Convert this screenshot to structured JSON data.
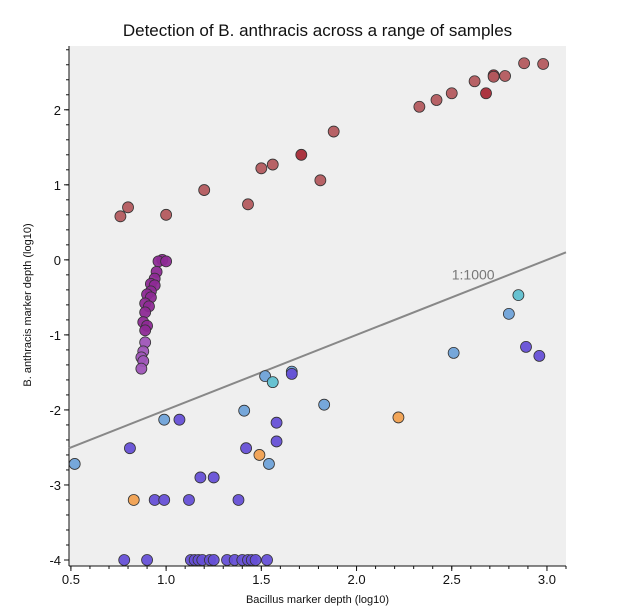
{
  "chart_data": {
    "type": "scatter",
    "title": "Detection of B. anthracis across a range of samples",
    "xlabel": "Bacillus marker depth (log10)",
    "ylabel": "B. anthracis marker depth (log10)",
    "xlim": [
      0.49,
      3.1
    ],
    "ylim": [
      -4.08,
      2.85
    ],
    "x_ticks": [
      "0.5",
      "1.0",
      "1.5",
      "2.0",
      "2.5",
      "3.0"
    ],
    "y_ticks": [
      "-4",
      "-3",
      "-2",
      "-1",
      "0",
      "1",
      "2"
    ],
    "grid": false,
    "background": "#efefef",
    "reference_line": {
      "label": "1:1000",
      "slope": 1,
      "intercept": -3,
      "color": "#888888"
    },
    "points": [
      {
        "x": 0.76,
        "y": 0.58,
        "color": "#b35a5e"
      },
      {
        "x": 0.8,
        "y": 0.7,
        "color": "#b35a5e"
      },
      {
        "x": 1.0,
        "y": 0.6,
        "color": "#b35a5e"
      },
      {
        "x": 1.2,
        "y": 0.93,
        "color": "#b35a5e"
      },
      {
        "x": 1.43,
        "y": 0.74,
        "color": "#b35a5e"
      },
      {
        "x": 1.5,
        "y": 1.22,
        "color": "#b35a5e"
      },
      {
        "x": 1.56,
        "y": 1.27,
        "color": "#b35a5e"
      },
      {
        "x": 1.71,
        "y": 1.4,
        "color": "#a62a36"
      },
      {
        "x": 1.81,
        "y": 1.06,
        "color": "#b35a5e"
      },
      {
        "x": 1.88,
        "y": 1.71,
        "color": "#b35a5e"
      },
      {
        "x": 2.33,
        "y": 2.04,
        "color": "#b35a5e"
      },
      {
        "x": 2.42,
        "y": 2.13,
        "color": "#b35a5e"
      },
      {
        "x": 2.5,
        "y": 2.22,
        "color": "#b35a5e"
      },
      {
        "x": 2.62,
        "y": 2.38,
        "color": "#b35a5e"
      },
      {
        "x": 2.68,
        "y": 2.22,
        "color": "#a62a36"
      },
      {
        "x": 2.72,
        "y": 2.46,
        "color": "#a62a36"
      },
      {
        "x": 2.72,
        "y": 2.44,
        "color": "#b35a5e"
      },
      {
        "x": 2.78,
        "y": 2.45,
        "color": "#b35a5e"
      },
      {
        "x": 2.88,
        "y": 2.62,
        "color": "#b35a5e"
      },
      {
        "x": 2.98,
        "y": 2.61,
        "color": "#b35a5e"
      },
      {
        "x": 0.98,
        "y": 0.0,
        "color": "#8d2a95"
      },
      {
        "x": 0.96,
        "y": -0.02,
        "color": "#8d2a95"
      },
      {
        "x": 1.0,
        "y": -0.02,
        "color": "#8d2a95"
      },
      {
        "x": 0.95,
        "y": -0.16,
        "color": "#8d2a95"
      },
      {
        "x": 0.94,
        "y": -0.25,
        "color": "#8d2a95"
      },
      {
        "x": 0.92,
        "y": -0.32,
        "color": "#8d2a95"
      },
      {
        "x": 0.94,
        "y": -0.34,
        "color": "#8d2a95"
      },
      {
        "x": 0.92,
        "y": -0.42,
        "color": "#8d2a95"
      },
      {
        "x": 0.9,
        "y": -0.46,
        "color": "#8d2a95"
      },
      {
        "x": 0.92,
        "y": -0.5,
        "color": "#8d2a95"
      },
      {
        "x": 0.89,
        "y": -0.58,
        "color": "#8d2a95"
      },
      {
        "x": 0.91,
        "y": -0.62,
        "color": "#8d2a95"
      },
      {
        "x": 0.89,
        "y": -0.7,
        "color": "#8d2a95"
      },
      {
        "x": 0.88,
        "y": -0.83,
        "color": "#8d2a95"
      },
      {
        "x": 0.9,
        "y": -0.88,
        "color": "#8d2a95"
      },
      {
        "x": 0.89,
        "y": -0.94,
        "color": "#8d2a95"
      },
      {
        "x": 0.89,
        "y": -1.1,
        "color": "#9f55b8"
      },
      {
        "x": 0.88,
        "y": -1.22,
        "color": "#9f55b8"
      },
      {
        "x": 0.87,
        "y": -1.3,
        "color": "#9f55b8"
      },
      {
        "x": 0.88,
        "y": -1.35,
        "color": "#9f55b8"
      },
      {
        "x": 0.87,
        "y": -1.45,
        "color": "#9f55b8"
      },
      {
        "x": 2.85,
        "y": -0.47,
        "color": "#5fbfcf"
      },
      {
        "x": 2.8,
        "y": -0.72,
        "color": "#6fa2d8"
      },
      {
        "x": 2.51,
        "y": -1.24,
        "color": "#6fa2d8"
      },
      {
        "x": 1.52,
        "y": -1.55,
        "color": "#6fa2d8"
      },
      {
        "x": 1.56,
        "y": -1.63,
        "color": "#5fbfcf"
      },
      {
        "x": 1.66,
        "y": -1.49,
        "color": "#6fa2d8"
      },
      {
        "x": 1.66,
        "y": -1.52,
        "color": "#6650d6"
      },
      {
        "x": 1.83,
        "y": -1.93,
        "color": "#6fa2d8"
      },
      {
        "x": 1.41,
        "y": -2.01,
        "color": "#6fa2d8"
      },
      {
        "x": 0.99,
        "y": -2.13,
        "color": "#6fa2d8"
      },
      {
        "x": 1.07,
        "y": -2.13,
        "color": "#6650d6"
      },
      {
        "x": 1.58,
        "y": -2.17,
        "color": "#6650d6"
      },
      {
        "x": 1.58,
        "y": -2.42,
        "color": "#6650d6"
      },
      {
        "x": 1.42,
        "y": -2.51,
        "color": "#6650d6"
      },
      {
        "x": 1.54,
        "y": -2.72,
        "color": "#6fa2d8"
      },
      {
        "x": 0.52,
        "y": -2.72,
        "color": "#6fa2d8"
      },
      {
        "x": 0.81,
        "y": -2.51,
        "color": "#6650d6"
      },
      {
        "x": 2.22,
        "y": -2.1,
        "color": "#f0a050"
      },
      {
        "x": 1.49,
        "y": -2.6,
        "color": "#f0a050"
      },
      {
        "x": 0.83,
        "y": -3.2,
        "color": "#f0a050"
      },
      {
        "x": 1.18,
        "y": -2.9,
        "color": "#6650d6"
      },
      {
        "x": 1.25,
        "y": -2.9,
        "color": "#6650d6"
      },
      {
        "x": 0.94,
        "y": -3.2,
        "color": "#6650d6"
      },
      {
        "x": 0.99,
        "y": -3.2,
        "color": "#6650d6"
      },
      {
        "x": 1.12,
        "y": -3.2,
        "color": "#6650d6"
      },
      {
        "x": 1.38,
        "y": -3.2,
        "color": "#6650d6"
      },
      {
        "x": 2.89,
        "y": -1.16,
        "color": "#6650d6"
      },
      {
        "x": 2.96,
        "y": -1.28,
        "color": "#6650d6"
      },
      {
        "x": 0.78,
        "y": -4.0,
        "color": "#6650d6"
      },
      {
        "x": 0.9,
        "y": -4.0,
        "color": "#6650d6"
      },
      {
        "x": 1.13,
        "y": -4.0,
        "color": "#6650d6"
      },
      {
        "x": 1.15,
        "y": -4.0,
        "color": "#6650d6"
      },
      {
        "x": 1.17,
        "y": -4.0,
        "color": "#6650d6"
      },
      {
        "x": 1.19,
        "y": -4.0,
        "color": "#6650d6"
      },
      {
        "x": 1.23,
        "y": -4.0,
        "color": "#6650d6"
      },
      {
        "x": 1.25,
        "y": -4.0,
        "color": "#6650d6"
      },
      {
        "x": 1.32,
        "y": -4.0,
        "color": "#6650d6"
      },
      {
        "x": 1.36,
        "y": -4.0,
        "color": "#6650d6"
      },
      {
        "x": 1.4,
        "y": -4.0,
        "color": "#6650d6"
      },
      {
        "x": 1.43,
        "y": -4.0,
        "color": "#6650d6"
      },
      {
        "x": 1.45,
        "y": -4.0,
        "color": "#6650d6"
      },
      {
        "x": 1.47,
        "y": -4.0,
        "color": "#6650d6"
      },
      {
        "x": 1.53,
        "y": -4.0,
        "color": "#6650d6"
      }
    ]
  }
}
